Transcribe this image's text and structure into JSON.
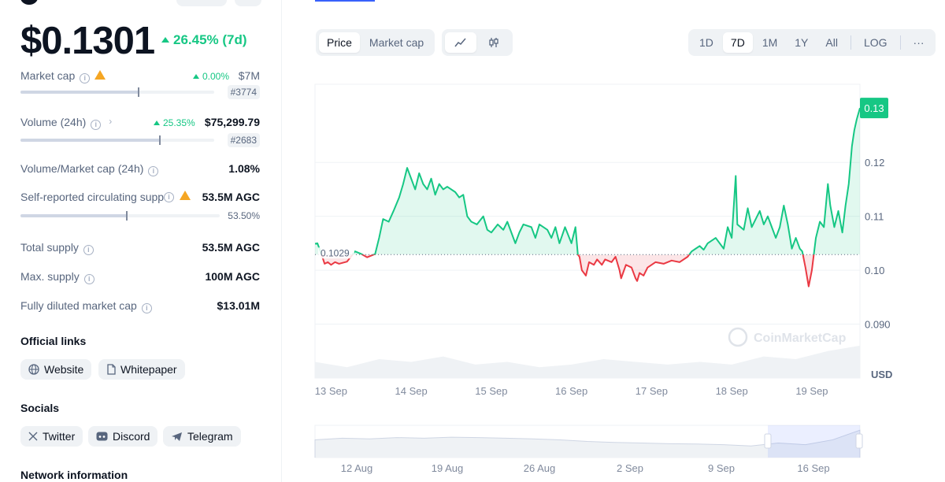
{
  "header": {
    "price": "$0.1301",
    "change_7d": "26.45% (7d)"
  },
  "stats": {
    "market_cap": {
      "label": "Market cap",
      "change": "0.00%",
      "value": "$7M",
      "rank": "#3774",
      "bar_fraction": 0.61
    },
    "volume": {
      "label": "Volume (24h)",
      "change": "25.35%",
      "value": "$75,299.79",
      "rank": "#2683",
      "bar_fraction": 0.72
    },
    "vol_mcap": {
      "label": "Volume/Market cap (24h)",
      "value": "1.08%"
    },
    "circulating": {
      "label": "Self-reported circulating supp",
      "value": "53.5M AGC",
      "percent": "53.50%",
      "bar_fraction": 0.535
    },
    "total_supply": {
      "label": "Total supply",
      "value": "53.5M AGC"
    },
    "max_supply": {
      "label": "Max. supply",
      "value": "100M AGC"
    },
    "fdv": {
      "label": "Fully diluted market cap",
      "value": "$13.01M"
    }
  },
  "official_links": {
    "title": "Official links",
    "items": [
      {
        "label": "Website",
        "icon": "globe-icon"
      },
      {
        "label": "Whitepaper",
        "icon": "document-icon"
      }
    ]
  },
  "socials": {
    "title": "Socials",
    "items": [
      {
        "label": "Twitter",
        "icon": "x-icon"
      },
      {
        "label": "Discord",
        "icon": "discord-icon"
      },
      {
        "label": "Telegram",
        "icon": "telegram-icon"
      }
    ]
  },
  "network": {
    "title": "Network information"
  },
  "chart_controls": {
    "metric_tabs": [
      "Price",
      "Market cap"
    ],
    "active_metric": "Price",
    "chart_types": [
      "line-chart-icon",
      "candlestick-icon"
    ],
    "ranges": [
      "1D",
      "7D",
      "1M",
      "1Y",
      "All",
      "LOG"
    ],
    "active_range": "7D",
    "more": "···"
  },
  "chart_data": {
    "type": "line",
    "currency": "USD",
    "watermark": "CoinMarketCap",
    "baseline": 0.1029,
    "baseline_label": "0.1029",
    "current_label": "0.13",
    "ylim": [
      0.08,
      0.1345
    ],
    "yticks": [
      "0.12",
      "0.11",
      "0.10",
      "0.090"
    ],
    "ytick_values": [
      0.12,
      0.11,
      0.1,
      0.09
    ],
    "ylabel": "USD",
    "xticks": [
      "13 Sep",
      "14 Sep",
      "15 Sep",
      "16 Sep",
      "17 Sep",
      "18 Sep",
      "19 Sep"
    ],
    "x_day_start": 12.8,
    "x_day_end": 19.6,
    "up_color": "#16c784",
    "down_color": "#ea3943",
    "series": [
      {
        "values": [
          [
            12.8,
            0.1049
          ],
          [
            12.83,
            0.105
          ],
          [
            12.88,
            0.103
          ],
          [
            12.92,
            0.1012
          ],
          [
            12.96,
            0.1015
          ],
          [
            13.0,
            0.101
          ],
          [
            13.05,
            0.1015
          ],
          [
            13.1,
            0.1012
          ],
          [
            13.15,
            0.1014
          ],
          [
            13.2,
            0.1016
          ],
          [
            13.3,
            0.1035
          ],
          [
            13.38,
            0.103
          ],
          [
            13.45,
            0.1024
          ],
          [
            13.55,
            0.103
          ],
          [
            13.6,
            0.106
          ],
          [
            13.65,
            0.1095
          ],
          [
            13.72,
            0.109
          ],
          [
            13.78,
            0.111
          ],
          [
            13.85,
            0.1135
          ],
          [
            13.9,
            0.116
          ],
          [
            13.95,
            0.119
          ],
          [
            14.0,
            0.117
          ],
          [
            14.05,
            0.115
          ],
          [
            14.1,
            0.118
          ],
          [
            14.15,
            0.116
          ],
          [
            14.2,
            0.115
          ],
          [
            14.25,
            0.117
          ],
          [
            14.3,
            0.114
          ],
          [
            14.35,
            0.116
          ],
          [
            14.4,
            0.115
          ],
          [
            14.45,
            0.1155
          ],
          [
            14.55,
            0.1145
          ],
          [
            14.6,
            0.1135
          ],
          [
            14.65,
            0.114
          ],
          [
            14.7,
            0.11
          ],
          [
            14.75,
            0.109
          ],
          [
            14.82,
            0.1085
          ],
          [
            14.9,
            0.11
          ],
          [
            14.95,
            0.1075
          ],
          [
            15.0,
            0.107
          ],
          [
            15.08,
            0.1085
          ],
          [
            15.15,
            0.1075
          ],
          [
            15.2,
            0.109
          ],
          [
            15.3,
            0.105
          ],
          [
            15.35,
            0.107
          ],
          [
            15.4,
            0.1085
          ],
          [
            15.5,
            0.108
          ],
          [
            15.55,
            0.106
          ],
          [
            15.6,
            0.1085
          ],
          [
            15.7,
            0.1075
          ],
          [
            15.75,
            0.106
          ],
          [
            15.8,
            0.108
          ],
          [
            15.85,
            0.105
          ],
          [
            15.92,
            0.108
          ],
          [
            16.0,
            0.105
          ],
          [
            16.05,
            0.108
          ],
          [
            16.08,
            0.1029
          ],
          [
            16.1,
            0.1025
          ],
          [
            16.13,
            0.1
          ],
          [
            16.18,
            0.099
          ],
          [
            16.22,
            0.1015
          ],
          [
            16.28,
            0.101
          ],
          [
            16.32,
            0.102
          ],
          [
            16.38,
            0.101
          ],
          [
            16.42,
            0.102
          ],
          [
            16.5,
            0.1015
          ],
          [
            16.55,
            0.1025
          ],
          [
            16.6,
            0.1
          ],
          [
            16.62,
            0.0985
          ],
          [
            16.68,
            0.101
          ],
          [
            16.75,
            0.1005
          ],
          [
            16.8,
            0.0985
          ],
          [
            16.82,
            0.098
          ],
          [
            16.85,
            0.0995
          ],
          [
            16.9,
            0.099
          ],
          [
            16.95,
            0.1005
          ],
          [
            17.05,
            0.1015
          ],
          [
            17.15,
            0.1012
          ],
          [
            17.25,
            0.1018
          ],
          [
            17.35,
            0.1015
          ],
          [
            17.45,
            0.1025
          ],
          [
            17.5,
            0.1035
          ],
          [
            17.55,
            0.104
          ],
          [
            17.6,
            0.1045
          ],
          [
            17.65,
            0.1038
          ],
          [
            17.7,
            0.105
          ],
          [
            17.8,
            0.106
          ],
          [
            17.9,
            0.104
          ],
          [
            17.95,
            0.108
          ],
          [
            18.0,
            0.106
          ],
          [
            18.05,
            0.1175
          ],
          [
            18.07,
            0.1085
          ],
          [
            18.15,
            0.1075
          ],
          [
            18.2,
            0.1115
          ],
          [
            18.25,
            0.108
          ],
          [
            18.3,
            0.1095
          ],
          [
            18.35,
            0.111
          ],
          [
            18.4,
            0.1085
          ],
          [
            18.45,
            0.11
          ],
          [
            18.5,
            0.108
          ],
          [
            18.55,
            0.106
          ],
          [
            18.6,
            0.108
          ],
          [
            18.65,
            0.112
          ],
          [
            18.7,
            0.1085
          ],
          [
            18.75,
            0.104
          ],
          [
            18.8,
            0.106
          ],
          [
            18.85,
            0.104
          ],
          [
            18.88,
            0.1035
          ],
          [
            18.92,
            0.1005
          ],
          [
            18.96,
            0.097
          ],
          [
            19.0,
            0.1
          ],
          [
            19.05,
            0.106
          ],
          [
            19.1,
            0.109
          ],
          [
            19.15,
            0.108
          ],
          [
            19.2,
            0.116
          ],
          [
            19.23,
            0.112
          ],
          [
            19.28,
            0.108
          ],
          [
            19.33,
            0.111
          ],
          [
            19.38,
            0.107
          ],
          [
            19.42,
            0.112
          ],
          [
            19.46,
            0.116
          ],
          [
            19.5,
            0.123
          ],
          [
            19.53,
            0.126
          ],
          [
            19.56,
            0.128
          ],
          [
            19.6,
            0.1301
          ]
        ]
      }
    ],
    "volume": [
      [
        12.8,
        0.083
      ],
      [
        13.2,
        0.082
      ],
      [
        13.6,
        0.0835
      ],
      [
        14.0,
        0.083
      ],
      [
        14.4,
        0.084
      ],
      [
        14.8,
        0.0825
      ],
      [
        15.2,
        0.083
      ],
      [
        15.6,
        0.082
      ],
      [
        16.0,
        0.0825
      ],
      [
        16.4,
        0.0835
      ],
      [
        16.8,
        0.083
      ],
      [
        17.2,
        0.0825
      ],
      [
        17.6,
        0.083
      ],
      [
        18.0,
        0.0825
      ],
      [
        18.4,
        0.084
      ],
      [
        18.8,
        0.0835
      ],
      [
        19.2,
        0.085
      ],
      [
        19.6,
        0.086
      ]
    ]
  },
  "navigator": {
    "xticks": [
      "12 Aug",
      "19 Aug",
      "26 Aug",
      "2 Sep",
      "9 Sep",
      "16 Sep"
    ]
  }
}
